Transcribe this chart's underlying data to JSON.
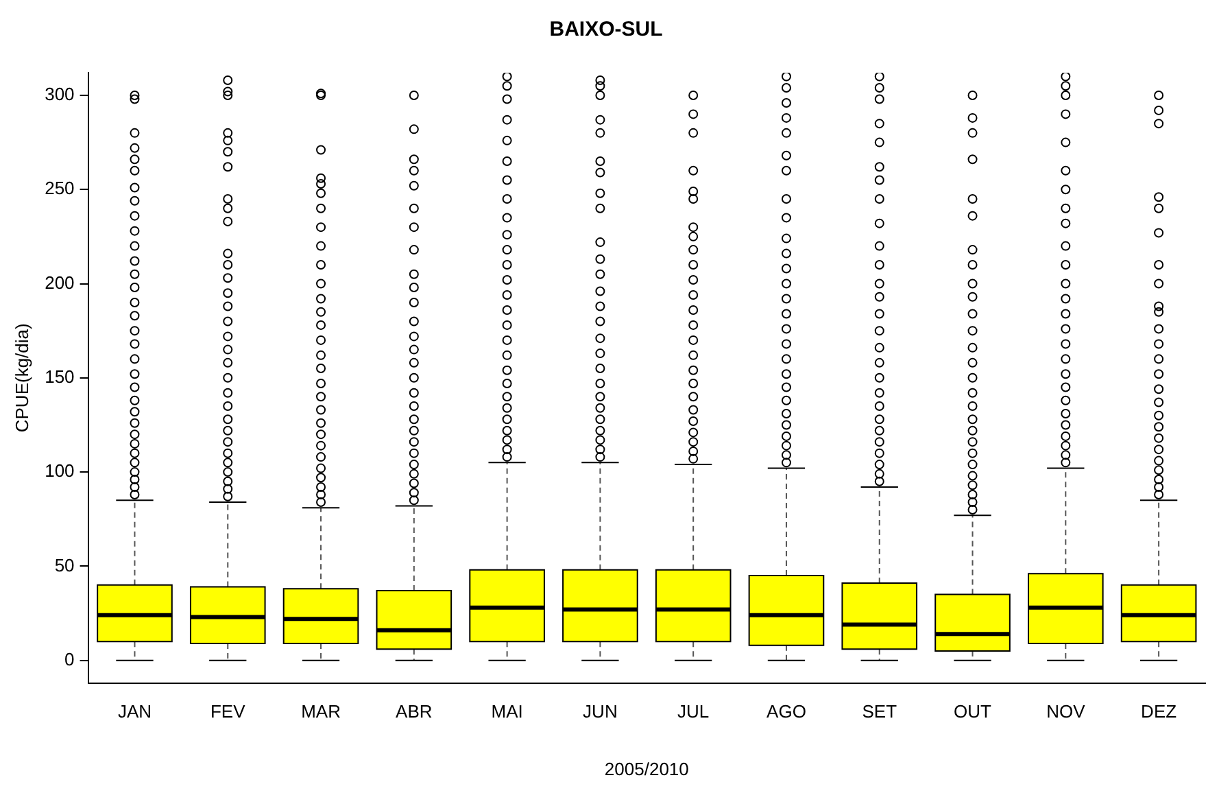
{
  "chart_data": {
    "type": "box",
    "title": "BAIXO-SUL",
    "xlabel": "2005/2010",
    "ylabel": "CPUE(kg/dia)",
    "categories": [
      "JAN",
      "FEV",
      "MAR",
      "ABR",
      "MAI",
      "JUN",
      "JUL",
      "AGO",
      "SET",
      "OUT",
      "NOV",
      "DEZ"
    ],
    "color": "#ffff00",
    "ylim": [
      -12,
      312
    ],
    "yticks": [
      0,
      50,
      100,
      150,
      200,
      250,
      300
    ],
    "grid": false,
    "boxes": [
      {
        "low": 0,
        "q1": 10,
        "median": 24,
        "q3": 40,
        "high": 85,
        "outliers": [
          88,
          92,
          96,
          100,
          105,
          110,
          115,
          120,
          126,
          132,
          138,
          145,
          152,
          160,
          168,
          175,
          183,
          190,
          198,
          205,
          212,
          220,
          228,
          236,
          244,
          251,
          260,
          266,
          272,
          280,
          298,
          300
        ]
      },
      {
        "low": 0,
        "q1": 9,
        "median": 23,
        "q3": 39,
        "high": 84,
        "outliers": [
          87,
          91,
          95,
          100,
          105,
          110,
          116,
          122,
          128,
          135,
          142,
          150,
          158,
          165,
          172,
          180,
          188,
          195,
          203,
          210,
          216,
          233,
          240,
          245,
          262,
          270,
          276,
          280,
          300,
          302,
          308
        ]
      },
      {
        "low": 0,
        "q1": 9,
        "median": 22,
        "q3": 38,
        "high": 81,
        "outliers": [
          84,
          88,
          92,
          97,
          102,
          108,
          114,
          120,
          126,
          133,
          140,
          147,
          155,
          162,
          170,
          178,
          185,
          192,
          200,
          210,
          220,
          230,
          240,
          248,
          253,
          256,
          271,
          300,
          301
        ]
      },
      {
        "low": 0,
        "q1": 6,
        "median": 16,
        "q3": 37,
        "high": 82,
        "outliers": [
          85,
          89,
          94,
          99,
          104,
          110,
          116,
          122,
          128,
          135,
          142,
          150,
          158,
          165,
          172,
          180,
          190,
          198,
          205,
          218,
          230,
          240,
          252,
          260,
          266,
          282,
          300
        ]
      },
      {
        "low": 0,
        "q1": 10,
        "median": 28,
        "q3": 48,
        "high": 105,
        "outliers": [
          108,
          112,
          117,
          122,
          128,
          134,
          140,
          147,
          154,
          162,
          170,
          178,
          186,
          194,
          202,
          210,
          218,
          226,
          235,
          245,
          255,
          265,
          276,
          287,
          298,
          305,
          310
        ]
      },
      {
        "low": 0,
        "q1": 10,
        "median": 27,
        "q3": 48,
        "high": 105,
        "outliers": [
          108,
          112,
          117,
          122,
          128,
          134,
          140,
          147,
          155,
          163,
          171,
          180,
          188,
          196,
          205,
          213,
          222,
          240,
          248,
          259,
          265,
          280,
          287,
          300,
          305,
          308
        ]
      },
      {
        "low": 0,
        "q1": 10,
        "median": 27,
        "q3": 48,
        "high": 104,
        "outliers": [
          107,
          111,
          116,
          121,
          127,
          133,
          140,
          147,
          154,
          162,
          170,
          178,
          186,
          194,
          202,
          210,
          218,
          225,
          230,
          245,
          249,
          260,
          280,
          290,
          300
        ]
      },
      {
        "low": 0,
        "q1": 8,
        "median": 24,
        "q3": 45,
        "high": 102,
        "outliers": [
          105,
          109,
          114,
          119,
          125,
          131,
          138,
          145,
          152,
          160,
          168,
          176,
          184,
          192,
          200,
          208,
          216,
          224,
          235,
          245,
          260,
          268,
          280,
          288,
          296,
          304,
          310
        ]
      },
      {
        "low": 0,
        "q1": 6,
        "median": 19,
        "q3": 41,
        "high": 92,
        "outliers": [
          95,
          99,
          104,
          110,
          116,
          122,
          128,
          135,
          142,
          150,
          158,
          166,
          175,
          184,
          193,
          200,
          210,
          220,
          232,
          245,
          255,
          262,
          275,
          285,
          298,
          304,
          310
        ]
      },
      {
        "low": 0,
        "q1": 5,
        "median": 14,
        "q3": 35,
        "high": 77,
        "outliers": [
          80,
          84,
          88,
          93,
          98,
          104,
          110,
          116,
          122,
          128,
          135,
          142,
          150,
          158,
          166,
          175,
          184,
          193,
          200,
          210,
          218,
          236,
          245,
          266,
          280,
          288,
          300
        ]
      },
      {
        "low": 0,
        "q1": 9,
        "median": 28,
        "q3": 46,
        "high": 102,
        "outliers": [
          105,
          109,
          114,
          119,
          125,
          131,
          138,
          145,
          152,
          160,
          168,
          176,
          184,
          192,
          200,
          210,
          220,
          232,
          240,
          250,
          260,
          275,
          290,
          300,
          305,
          310
        ]
      },
      {
        "low": 0,
        "q1": 10,
        "median": 24,
        "q3": 40,
        "high": 85,
        "outliers": [
          88,
          92,
          96,
          101,
          106,
          112,
          118,
          124,
          130,
          137,
          144,
          152,
          160,
          168,
          176,
          185,
          188,
          200,
          210,
          227,
          240,
          246,
          285,
          292,
          300
        ]
      }
    ]
  }
}
